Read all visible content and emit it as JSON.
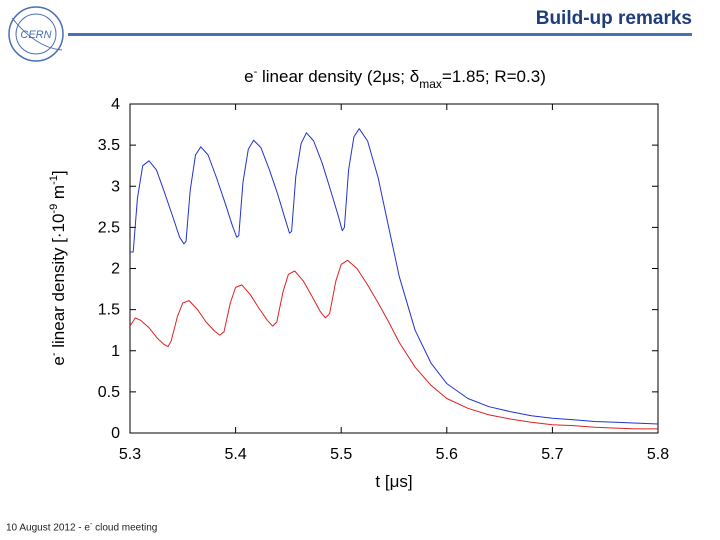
{
  "slide": {
    "title": "Build-up remarks",
    "logo_text": "CERN",
    "footer_date": "10 August 2012",
    "footer_sep": "-",
    "footer_e": "e",
    "footer_sup": "-",
    "footer_topic": "cloud meeting",
    "accent_color": "#1f3d7a",
    "line_color": "#4a6fb5"
  },
  "chart_data": {
    "type": "line",
    "title": {
      "prefix": "e",
      "sup": "-",
      "main": " linear density (2μs; δ",
      "sub": "max",
      "rest": "=1.85; R=0.3)"
    },
    "xlabel": "t [μs]",
    "ylabel": {
      "a": "e",
      "a_sup": "-",
      "b": " linear density [·10",
      "b_sup": "-9",
      "c": " m",
      "c_sup": "-1",
      "d": "]"
    },
    "xlim": [
      5.3,
      5.8
    ],
    "ylim": [
      0,
      4
    ],
    "xticks": [
      5.3,
      5.4,
      5.5,
      5.6,
      5.7,
      5.8
    ],
    "xtick_labels": [
      "5.3",
      "5.4",
      "5.5",
      "5.6",
      "5.7",
      "5.8"
    ],
    "yticks": [
      0,
      0.5,
      1,
      1.5,
      2,
      2.5,
      3,
      3.5,
      4
    ],
    "ytick_labels": [
      "0",
      "0.5",
      "1",
      "1.5",
      "2",
      "2.5",
      "3",
      "3.5",
      "4"
    ],
    "series": [
      {
        "name": "blue",
        "color": "#2233cc",
        "x": [
          5.3,
          5.303,
          5.307,
          5.312,
          5.318,
          5.325,
          5.332,
          5.34,
          5.347,
          5.351,
          5.353,
          5.357,
          5.362,
          5.367,
          5.374,
          5.382,
          5.39,
          5.397,
          5.401,
          5.403,
          5.407,
          5.412,
          5.417,
          5.424,
          5.432,
          5.44,
          5.447,
          5.451,
          5.453,
          5.457,
          5.462,
          5.467,
          5.474,
          5.482,
          5.49,
          5.497,
          5.501,
          5.503,
          5.507,
          5.512,
          5.517,
          5.525,
          5.535,
          5.545,
          5.555,
          5.57,
          5.585,
          5.6,
          5.62,
          5.64,
          5.66,
          5.68,
          5.7,
          5.72,
          5.74,
          5.76,
          5.78,
          5.8
        ],
        "y": [
          2.2,
          2.2,
          2.85,
          3.25,
          3.31,
          3.2,
          2.95,
          2.65,
          2.38,
          2.3,
          2.33,
          2.95,
          3.38,
          3.48,
          3.38,
          3.1,
          2.8,
          2.52,
          2.38,
          2.4,
          3.05,
          3.45,
          3.56,
          3.47,
          3.2,
          2.9,
          2.6,
          2.43,
          2.45,
          3.12,
          3.52,
          3.65,
          3.55,
          3.28,
          2.95,
          2.65,
          2.46,
          2.5,
          3.2,
          3.6,
          3.7,
          3.55,
          3.1,
          2.5,
          1.9,
          1.25,
          0.85,
          0.6,
          0.42,
          0.32,
          0.26,
          0.21,
          0.18,
          0.16,
          0.14,
          0.13,
          0.12,
          0.11
        ]
      },
      {
        "name": "red",
        "color": "#dd2222",
        "x": [
          5.3,
          5.305,
          5.31,
          5.318,
          5.326,
          5.332,
          5.336,
          5.339,
          5.345,
          5.35,
          5.356,
          5.364,
          5.372,
          5.38,
          5.385,
          5.389,
          5.395,
          5.4,
          5.406,
          5.414,
          5.422,
          5.43,
          5.435,
          5.439,
          5.445,
          5.45,
          5.456,
          5.464,
          5.472,
          5.48,
          5.485,
          5.489,
          5.495,
          5.5,
          5.506,
          5.515,
          5.525,
          5.535,
          5.545,
          5.555,
          5.57,
          5.585,
          5.6,
          5.62,
          5.64,
          5.66,
          5.68,
          5.7,
          5.72,
          5.74,
          5.76,
          5.78,
          5.8
        ],
        "y": [
          1.3,
          1.4,
          1.37,
          1.28,
          1.15,
          1.08,
          1.05,
          1.12,
          1.42,
          1.58,
          1.61,
          1.5,
          1.35,
          1.24,
          1.19,
          1.23,
          1.58,
          1.77,
          1.8,
          1.68,
          1.52,
          1.37,
          1.3,
          1.35,
          1.72,
          1.93,
          1.97,
          1.85,
          1.67,
          1.48,
          1.4,
          1.45,
          1.85,
          2.05,
          2.1,
          2.0,
          1.8,
          1.58,
          1.35,
          1.1,
          0.8,
          0.58,
          0.42,
          0.3,
          0.22,
          0.17,
          0.13,
          0.1,
          0.09,
          0.07,
          0.06,
          0.05,
          0.05
        ]
      }
    ]
  }
}
